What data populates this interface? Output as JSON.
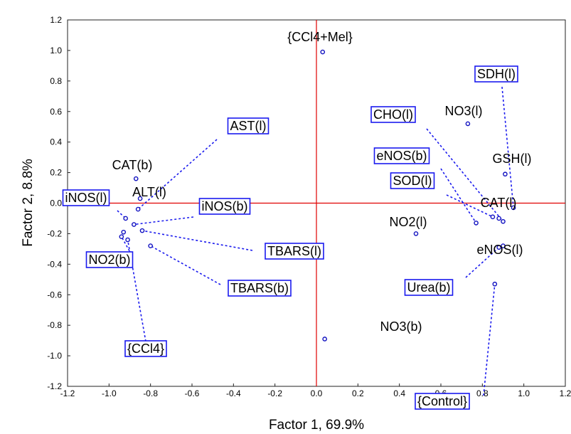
{
  "chart_data": {
    "type": "scatter",
    "title": "",
    "xlabel": "Factor 1, 69.9%",
    "ylabel": "Factor 2, 8.8%",
    "xlim": [
      -1.2,
      1.2
    ],
    "ylim": [
      -1.2,
      1.2
    ],
    "xticks": [
      -1.2,
      -1.0,
      -0.8,
      -0.6,
      -0.4,
      -0.2,
      0.0,
      0.2,
      0.4,
      0.6,
      0.8,
      1.0,
      1.2
    ],
    "yticks": [
      -1.2,
      -1.0,
      -0.8,
      -0.6,
      -0.4,
      -0.2,
      0.0,
      0.2,
      0.4,
      0.6,
      0.8,
      1.0,
      1.2
    ],
    "reference_lines": {
      "x": 0,
      "y": 0,
      "color": "#e00000"
    },
    "point_color": "#1010c0",
    "leader_color": "#1a1aee",
    "points": [
      {
        "label": "{CCl4+Mel}",
        "x": 0.03,
        "y": 0.99,
        "boxed": false
      },
      {
        "label": "NO3(l)",
        "x": 0.73,
        "y": 0.52,
        "boxed": false
      },
      {
        "label": "SDH(l)",
        "x": 0.95,
        "y": -0.03,
        "boxed": true
      },
      {
        "label": "CHO(l)",
        "x": 0.9,
        "y": -0.12,
        "boxed": true
      },
      {
        "label": "GSH(l)",
        "x": 0.91,
        "y": 0.19,
        "boxed": false
      },
      {
        "label": "eNOS(b)",
        "x": 0.77,
        "y": -0.13,
        "boxed": true
      },
      {
        "label": "SOD(l)",
        "x": 0.85,
        "y": -0.09,
        "boxed": true
      },
      {
        "label": "CAT(l)",
        "x": 0.88,
        "y": -0.1,
        "boxed": false
      },
      {
        "label": "NO2(l)",
        "x": 0.48,
        "y": -0.2,
        "boxed": false
      },
      {
        "label": "eNOS(l)",
        "x": 0.9,
        "y": -0.28,
        "boxed": false
      },
      {
        "label": "Urea(b)",
        "x": 0.88,
        "y": -0.29,
        "boxed": true
      },
      {
        "label": "{Control}",
        "x": 0.86,
        "y": -0.53,
        "boxed": true
      },
      {
        "label": "NO3(b)",
        "x": 0.04,
        "y": -0.89,
        "boxed": false
      },
      {
        "label": "CAT(b)",
        "x": -0.87,
        "y": 0.16,
        "boxed": false
      },
      {
        "label": "ALT(l)",
        "x": -0.85,
        "y": 0.03,
        "boxed": false
      },
      {
        "label": "AST(l)",
        "x": -0.86,
        "y": -0.04,
        "boxed": true
      },
      {
        "label": "iNOS(l)",
        "x": -0.92,
        "y": -0.1,
        "boxed": true
      },
      {
        "label": "iNOS(b)",
        "x": -0.88,
        "y": -0.14,
        "boxed": true
      },
      {
        "label": "NO2(b)",
        "x": -0.94,
        "y": -0.22,
        "boxed": true
      },
      {
        "label": "TBARS(l)",
        "x": -0.84,
        "y": -0.18,
        "boxed": true
      },
      {
        "label": "TBARS(b)",
        "x": -0.8,
        "y": -0.28,
        "boxed": true
      },
      {
        "label": "{CCl4}",
        "x": -0.91,
        "y": -0.24,
        "boxed": true
      },
      {
        "label": "",
        "x": -0.93,
        "y": -0.19,
        "boxed": false
      }
    ]
  }
}
